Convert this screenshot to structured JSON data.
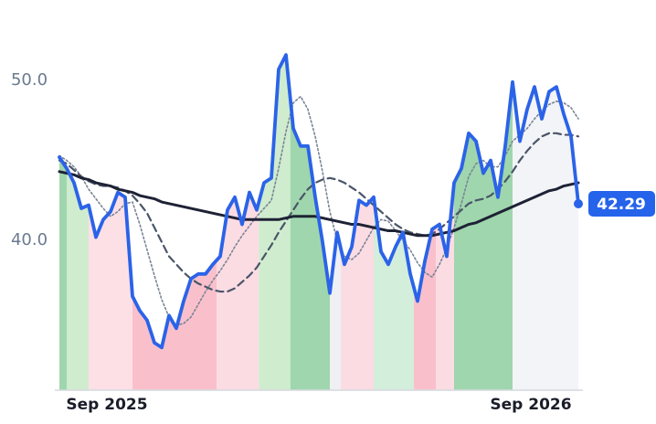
{
  "chart_data": {
    "type": "line",
    "categories": [
      null,
      null,
      null,
      null,
      null,
      null,
      "Sep 2025",
      null,
      null,
      null,
      null,
      null,
      null,
      null,
      null,
      null,
      null,
      null,
      null,
      null,
      null,
      null,
      null,
      null,
      null,
      null,
      null,
      null,
      null,
      null,
      null,
      null,
      null,
      null,
      null,
      null,
      null,
      null,
      null,
      null,
      null,
      null,
      null,
      null,
      null,
      null,
      null,
      null,
      null,
      null,
      null,
      null,
      null,
      null,
      null,
      null,
      null,
      null,
      null,
      null,
      null,
      null,
      null,
      null,
      "Sep 2026",
      null,
      null,
      null,
      null,
      null,
      null,
      null
    ],
    "series": [
      {
        "color": "#2b63e8",
        "dash": "solid",
        "values": [
          45.2,
          44.5,
          43.6,
          42.0,
          42.2,
          40.2,
          41.3,
          41.8,
          43.0,
          42.7,
          36.5,
          35.6,
          35.0,
          33.6,
          33.3,
          35.3,
          34.5,
          36.2,
          37.6,
          37.9,
          37.9,
          38.5,
          39.0,
          41.9,
          42.7,
          41.0,
          43.0,
          41.9,
          43.6,
          43.9,
          50.7,
          51.6,
          47.0,
          45.9,
          45.9,
          42.7,
          39.9,
          36.7,
          40.5,
          38.5,
          39.6,
          42.5,
          42.2,
          42.7,
          39.3,
          38.5,
          39.6,
          40.5,
          37.9,
          36.2,
          38.7,
          40.7,
          41.0,
          39.0,
          43.6,
          44.5,
          46.7,
          46.2,
          44.2,
          45.0,
          42.7,
          45.9,
          49.9,
          46.2,
          48.2,
          49.6,
          47.6,
          49.3,
          49.6,
          47.9,
          46.5,
          42.29
        ]
      },
      {
        "color": "#1e2235",
        "dash": "solid",
        "values": [
          44.3,
          44.2,
          44.1,
          43.9,
          43.8,
          43.6,
          43.5,
          43.4,
          43.2,
          43.1,
          43.0,
          42.8,
          42.7,
          42.6,
          42.4,
          42.3,
          42.2,
          42.1,
          42.0,
          41.9,
          41.8,
          41.7,
          41.6,
          41.5,
          41.4,
          41.3,
          41.3,
          41.3,
          41.3,
          41.3,
          41.3,
          41.4,
          41.5,
          41.5,
          41.5,
          41.5,
          41.4,
          41.3,
          41.2,
          41.1,
          41.0,
          41.0,
          40.9,
          40.8,
          40.7,
          40.6,
          40.6,
          40.5,
          40.4,
          40.3,
          40.3,
          40.3,
          40.4,
          40.5,
          40.6,
          40.8,
          41.0,
          41.1,
          41.3,
          41.5,
          41.7,
          41.9,
          42.1,
          42.3,
          42.5,
          42.7,
          42.9,
          43.1,
          43.2,
          43.4,
          43.5,
          43.6
        ]
      },
      {
        "color": "#4a5568",
        "dash": "dashed",
        "values": [
          45.0,
          44.8,
          44.4,
          44.0,
          43.7,
          43.5,
          43.4,
          43.4,
          43.3,
          43.1,
          42.8,
          42.3,
          41.7,
          40.8,
          39.9,
          39.0,
          38.5,
          38.0,
          37.6,
          37.3,
          37.1,
          36.9,
          36.8,
          36.8,
          37.0,
          37.4,
          37.8,
          38.3,
          39.0,
          39.7,
          40.5,
          41.2,
          41.9,
          42.6,
          43.2,
          43.6,
          43.8,
          43.9,
          43.8,
          43.6,
          43.3,
          43.0,
          42.6,
          42.2,
          41.8,
          41.4,
          41.0,
          40.7,
          40.5,
          40.4,
          40.3,
          40.4,
          40.7,
          41.1,
          41.5,
          41.9,
          42.3,
          42.5,
          42.6,
          42.8,
          43.2,
          43.7,
          44.3,
          45.0,
          45.6,
          46.1,
          46.5,
          46.7,
          46.7,
          46.6,
          46.6,
          46.5
        ]
      },
      {
        "color": "#7a8496",
        "dash": "dotted",
        "values": [
          45.3,
          45.0,
          44.6,
          44.0,
          43.2,
          42.6,
          42.0,
          41.5,
          41.8,
          42.3,
          42.4,
          41.0,
          39.4,
          37.8,
          36.3,
          35.2,
          34.7,
          34.8,
          35.2,
          36.0,
          36.8,
          37.5,
          38.1,
          38.8,
          39.6,
          40.3,
          40.9,
          41.5,
          42.0,
          42.5,
          44.5,
          46.8,
          48.6,
          49.0,
          48.2,
          46.5,
          44.3,
          41.8,
          40.0,
          39.0,
          38.8,
          39.2,
          40.0,
          40.8,
          41.3,
          41.2,
          40.6,
          40.0,
          39.4,
          38.6,
          38.0,
          37.7,
          38.5,
          39.5,
          40.8,
          42.3,
          44.0,
          44.8,
          45.0,
          44.6,
          44.6,
          45.3,
          46.2,
          46.6,
          47.0,
          47.6,
          48.1,
          48.5,
          48.7,
          48.6,
          48.3,
          47.6
        ]
      }
    ],
    "regions": [
      {
        "from": 0,
        "to": 1,
        "color": "#9fd6ad"
      },
      {
        "from": 1,
        "to": 4,
        "color": "#cfeccf"
      },
      {
        "from": 4,
        "to": 10,
        "color": "#fde0e6"
      },
      {
        "from": 10,
        "to": 21.5,
        "color": "#f9c0cc"
      },
      {
        "from": 21.5,
        "to": 27.3,
        "color": "#fcdce3"
      },
      {
        "from": 27.3,
        "to": 31.6,
        "color": "#cfeccf"
      },
      {
        "from": 31.6,
        "to": 37,
        "color": "#9fd6ad"
      },
      {
        "from": 37,
        "to": 38.5,
        "color": "#eef0f3"
      },
      {
        "from": 38.5,
        "to": 43,
        "color": "#fcdce3"
      },
      {
        "from": 43,
        "to": 48.5,
        "color": "#d3eedb"
      },
      {
        "from": 48.5,
        "to": 51.5,
        "color": "#f9c0cc"
      },
      {
        "from": 51.5,
        "to": 54,
        "color": "#fcdce3"
      },
      {
        "from": 54,
        "to": 62,
        "color": "#9fd6ad"
      },
      {
        "from": 62,
        "to": 71,
        "color": "#f3f4f7"
      }
    ],
    "ylim": [
      30.63,
      53.89
    ],
    "yticks": [
      {
        "value": 40,
        "label": "40.0"
      },
      {
        "value": 50,
        "label": "50.0"
      }
    ],
    "grid": false
  }
}
